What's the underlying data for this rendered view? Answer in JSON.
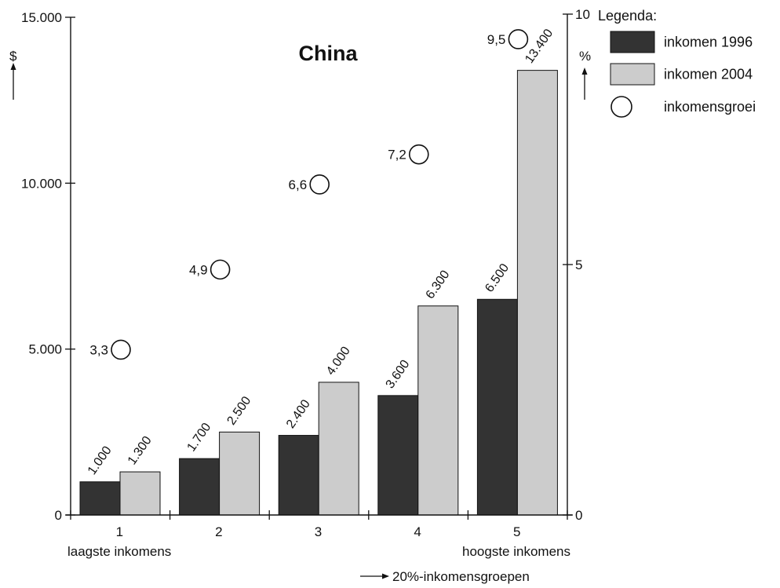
{
  "chart_data": {
    "type": "bar",
    "title": "China",
    "categories": [
      "1",
      "2",
      "3",
      "4",
      "5"
    ],
    "category_notes": {
      "first": "laagste inkomens",
      "last": "hoogste inkomens"
    },
    "xlabel": "20%-inkomensgroepen",
    "ylabel_left": "$",
    "ylabel_right": "%",
    "ylim_left": [
      0,
      15000
    ],
    "ylim_right": [
      0,
      10
    ],
    "left_ticks": [
      0,
      5000,
      10000,
      15000
    ],
    "left_tick_labels": [
      "0",
      "5.000",
      "10.000",
      "15.000"
    ],
    "right_ticks": [
      0,
      5,
      10
    ],
    "right_tick_labels": [
      "0",
      "5",
      "10"
    ],
    "series": [
      {
        "name": "inkomen 1996",
        "color": "#333333",
        "axis": "left",
        "values": [
          1000,
          1700,
          2400,
          3600,
          6500
        ],
        "labels": [
          "1.000",
          "1.700",
          "2.400",
          "3.600",
          "6.500"
        ]
      },
      {
        "name": "inkomen 2004",
        "color": "#cccccc",
        "axis": "left",
        "values": [
          1300,
          2500,
          4000,
          6300,
          13400
        ],
        "labels": [
          "1.300",
          "2.500",
          "4.000",
          "6.300",
          "13.400"
        ]
      },
      {
        "name": "inkomensgroei",
        "marker": "circle",
        "axis": "right",
        "values": [
          3.3,
          4.9,
          6.6,
          7.2,
          9.5
        ],
        "labels": [
          "3,3",
          "4,9",
          "6,6",
          "7,2",
          "9,5"
        ]
      }
    ],
    "legend": {
      "title": "Legenda:",
      "position": "top-right"
    },
    "grid": false
  }
}
